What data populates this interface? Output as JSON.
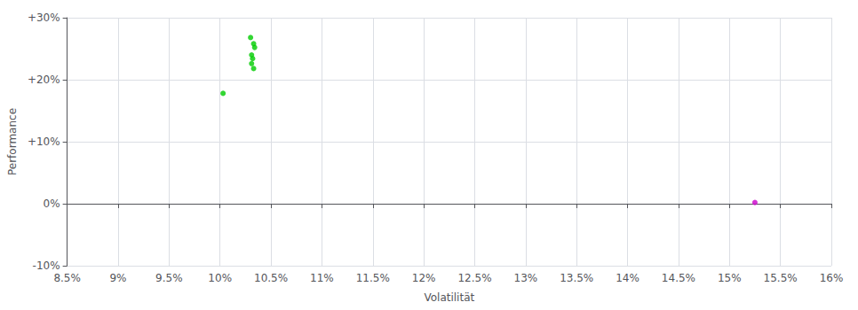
{
  "chart_data": {
    "type": "scatter",
    "xlabel": "Volatilität",
    "ylabel": "Performance",
    "xlim": [
      0.085,
      0.16
    ],
    "ylim": [
      -0.1,
      0.3
    ],
    "xticks": [
      {
        "value": 0.085,
        "label": "8.5%"
      },
      {
        "value": 0.09,
        "label": "9%"
      },
      {
        "value": 0.095,
        "label": "9.5%"
      },
      {
        "value": 0.1,
        "label": "10%"
      },
      {
        "value": 0.105,
        "label": "10.5%"
      },
      {
        "value": 0.11,
        "label": "11%"
      },
      {
        "value": 0.115,
        "label": "11.5%"
      },
      {
        "value": 0.12,
        "label": "12%"
      },
      {
        "value": 0.125,
        "label": "12.5%"
      },
      {
        "value": 0.13,
        "label": "13%"
      },
      {
        "value": 0.135,
        "label": "13.5%"
      },
      {
        "value": 0.14,
        "label": "14%"
      },
      {
        "value": 0.145,
        "label": "14.5%"
      },
      {
        "value": 0.15,
        "label": "15%"
      },
      {
        "value": 0.155,
        "label": "15.5%"
      },
      {
        "value": 0.16,
        "label": "16%"
      }
    ],
    "yticks": [
      {
        "value": -0.1,
        "label": "-10%"
      },
      {
        "value": 0.0,
        "label": "0%"
      },
      {
        "value": 0.1,
        "label": "+10%"
      },
      {
        "value": 0.2,
        "label": "+20%"
      },
      {
        "value": 0.3,
        "label": "+30%"
      }
    ],
    "grid": true,
    "series": [
      {
        "color": "#00cc00",
        "x": [
          0.103,
          0.1033,
          0.1034,
          0.1031,
          0.1032,
          0.1031,
          0.1033,
          0.1003
        ],
        "values": [
          0.268,
          0.258,
          0.252,
          0.24,
          0.234,
          0.226,
          0.218,
          0.178
        ]
      },
      {
        "color": "#cc00cc",
        "x": [
          0.1525
        ],
        "values": [
          0.002
        ]
      }
    ]
  }
}
